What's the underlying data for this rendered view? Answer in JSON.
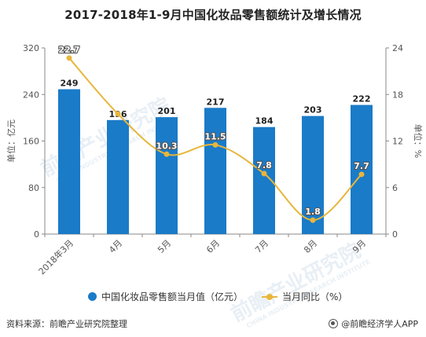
{
  "title": "2017-2018年1-9月中国化妆品零售额统计及增长情况",
  "chart_data": {
    "type": "bar",
    "categories": [
      "2018年3月",
      "4月",
      "5月",
      "6月",
      "7月",
      "8月",
      "9月"
    ],
    "series": [
      {
        "name": "中国化妆品零售额当月值（亿元）",
        "type": "bar",
        "axis": "left",
        "values": [
          249,
          196,
          201,
          217,
          184,
          203,
          222
        ],
        "labels": [
          "249",
          "196",
          "201",
          "217",
          "184",
          "203",
          "222"
        ],
        "color": "#1a7bc8"
      },
      {
        "name": "当月同比（%）",
        "type": "line",
        "axis": "right",
        "values": [
          22.7,
          15.5,
          10.3,
          11.5,
          7.8,
          1.8,
          7.7
        ],
        "labels": [
          "22.7",
          "",
          "10.3",
          "11.5",
          "7.8",
          "1.8",
          "7.7"
        ],
        "color": "#e8b63a"
      }
    ],
    "ylabel_left": "单位：亿元",
    "ylabel_right": "单位：%",
    "ylim_left": [
      0,
      320
    ],
    "ylim_right": [
      0,
      24
    ],
    "yticks_left": [
      "0",
      "80",
      "160",
      "240",
      "320"
    ],
    "yticks_right": [
      "0",
      "6",
      "12",
      "18",
      "24"
    ],
    "grid": false,
    "legend": "bottom"
  },
  "legend": {
    "items": [
      {
        "label": "中国化妆品零售额当月值（亿元）"
      },
      {
        "label": "当月同比（%）"
      }
    ]
  },
  "footer": {
    "source": "资料来源：前瞻产业研究院整理",
    "brand": "@前瞻经济学人APP"
  },
  "watermark": {
    "text": "前瞻产业研究院",
    "sub": "CHINA INDUSTRY RESEARCH INSTITUTE"
  }
}
